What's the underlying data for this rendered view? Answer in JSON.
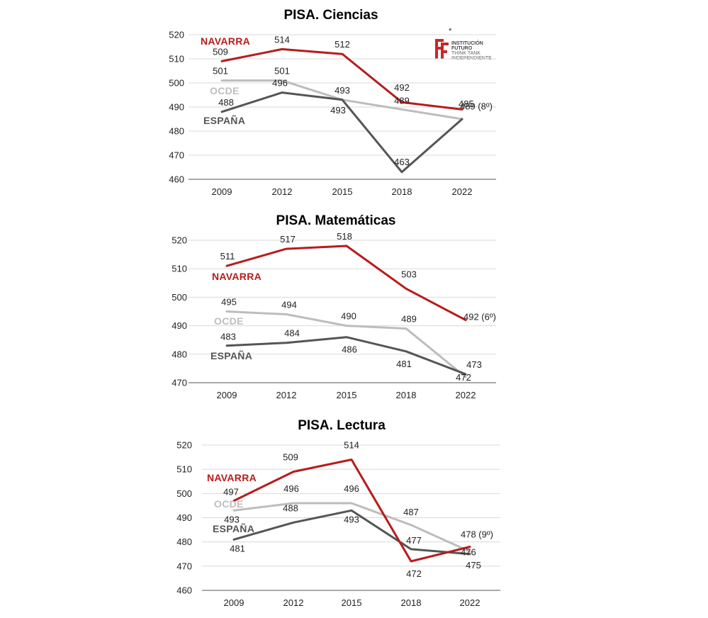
{
  "colors": {
    "navarra": "#b71c1c",
    "ocde": "#bdbdbd",
    "espana": "#555555",
    "grid": "#d9d9d9",
    "axis": "#555555"
  },
  "logo": {
    "line1": "INSTITUCIÓN",
    "line2": "FUTURO",
    "line3": "THINK TANK",
    "line4": "INDEPENDIENTE",
    "mark": "*"
  },
  "chart_data": [
    {
      "type": "line",
      "title": "PISA. Ciencias",
      "categories": [
        "2009",
        "2012",
        "2015",
        "2018",
        "2022"
      ],
      "ylim": [
        460,
        520
      ],
      "yticks": [
        460,
        470,
        480,
        490,
        500,
        510,
        520
      ],
      "grid": true,
      "series": [
        {
          "name": "NAVARRA",
          "key": "navarra",
          "values": [
            509,
            514,
            512,
            492,
            489
          ],
          "labels": [
            "509",
            "514",
            "512",
            "492",
            "489 (8º)"
          ]
        },
        {
          "name": "OCDE",
          "key": "ocde",
          "values": [
            501,
            501,
            493,
            489,
            485
          ],
          "labels": [
            "501",
            "501",
            "493",
            "489",
            "485"
          ]
        },
        {
          "name": "ESPAÑA",
          "key": "espana",
          "values": [
            488,
            496,
            493,
            463,
            485
          ],
          "labels": [
            "488",
            "496",
            "493",
            "463",
            ""
          ]
        }
      ]
    },
    {
      "type": "line",
      "title": "PISA. Matemáticas",
      "categories": [
        "2009",
        "2012",
        "2015",
        "2018",
        "2022"
      ],
      "ylim": [
        470,
        520
      ],
      "yticks": [
        470,
        480,
        490,
        500,
        510,
        520
      ],
      "grid": true,
      "series": [
        {
          "name": "NAVARRA",
          "key": "navarra",
          "values": [
            511,
            517,
            518,
            503,
            492
          ],
          "labels": [
            "511",
            "517",
            "518",
            "503",
            "492 (6º)"
          ]
        },
        {
          "name": "OCDE",
          "key": "ocde",
          "values": [
            495,
            494,
            490,
            489,
            472
          ],
          "labels": [
            "495",
            "494",
            "490",
            "489",
            "472"
          ]
        },
        {
          "name": "ESPAÑA",
          "key": "espana",
          "values": [
            483,
            484,
            486,
            481,
            473
          ],
          "labels": [
            "483",
            "484",
            "486",
            "481",
            "473"
          ]
        }
      ]
    },
    {
      "type": "line",
      "title": "PISA. Lectura",
      "categories": [
        "2009",
        "2012",
        "2015",
        "2018",
        "2022"
      ],
      "ylim": [
        460,
        520
      ],
      "yticks": [
        460,
        470,
        480,
        490,
        500,
        510,
        520
      ],
      "grid": true,
      "series": [
        {
          "name": "NAVARRA",
          "key": "navarra",
          "values": [
            497,
            509,
            514,
            472,
            478
          ],
          "labels": [
            "497",
            "509",
            "514",
            "472",
            "478 (9º)"
          ]
        },
        {
          "name": "OCDE",
          "key": "ocde",
          "values": [
            493,
            496,
            496,
            487,
            476
          ],
          "labels": [
            "493",
            "496",
            "496",
            "487",
            "476"
          ]
        },
        {
          "name": "ESPAÑA",
          "key": "espana",
          "values": [
            481,
            488,
            493,
            477,
            475
          ],
          "labels": [
            "481",
            "488",
            "493",
            "477",
            "475"
          ]
        }
      ]
    }
  ]
}
